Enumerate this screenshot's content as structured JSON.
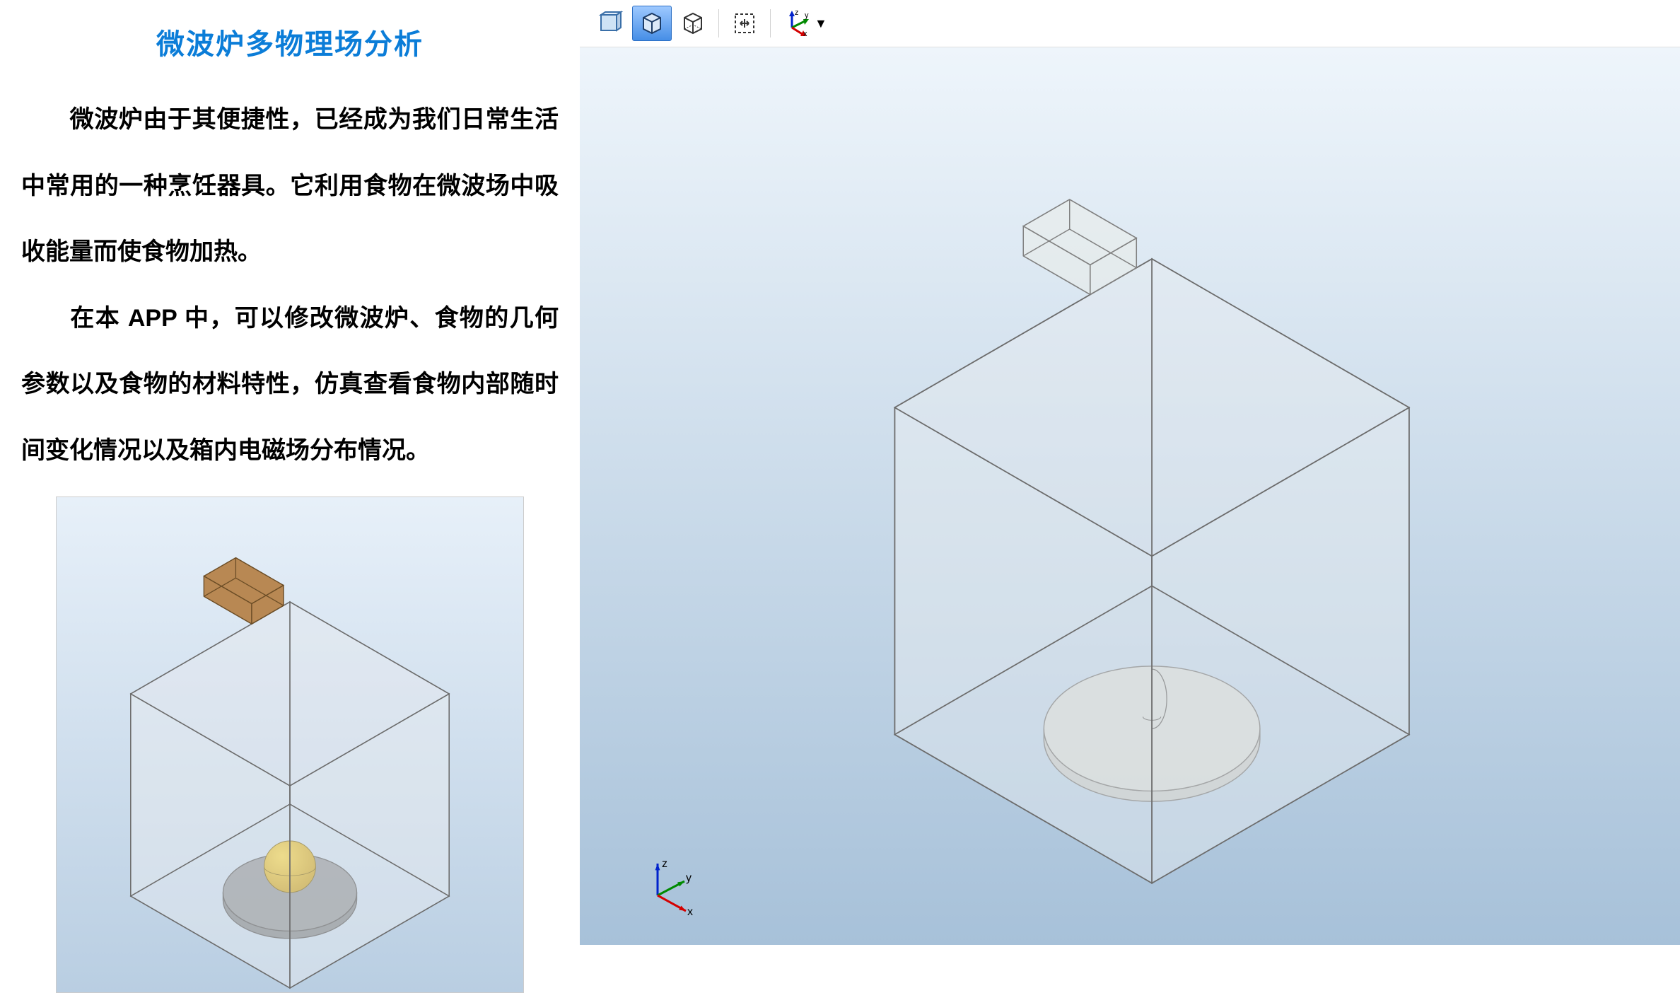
{
  "title": "微波炉多物理场分析",
  "description": {
    "p1": "微波炉由于其便捷性，已经成为我们日常生活中常用的一种烹饪器具。它利用食物在微波场中吸收能量而使食物加热。",
    "p2": "在本 APP 中，可以修改微波炉、食物的几何参数以及食物的材料特性，仿真查看食物内部随时间变化情况以及箱内电磁场分布情况。"
  },
  "toolbar": {
    "buttons": [
      {
        "name": "view-front",
        "active": false
      },
      {
        "name": "view-shaded-box",
        "active": true
      },
      {
        "name": "view-wireframe",
        "active": false
      },
      {
        "name": "zoom-extents",
        "active": false
      }
    ],
    "axis_dropdown": {
      "name": "axis-orientation"
    }
  },
  "viewport": {
    "background_top": "#eef5fb",
    "background_bottom": "#a7c1d9",
    "box_edge_color": "#6d6d6d",
    "box_face_color": "#e8edf2",
    "box_face_opacity": 0.35,
    "plate_color": "#d5d7d5",
    "plate_edge": "#808080",
    "waveguide_edge": "#808080",
    "waveguide_face": "#eceee8",
    "triad": {
      "x_color": "#d40000",
      "y_color": "#008a00",
      "z_color": "#0022cc",
      "labels": {
        "x": "x",
        "y": "y",
        "z": "z"
      }
    }
  },
  "thumbnail": {
    "background_top": "#e7f0f9",
    "background_bottom": "#b9cee2",
    "box_edge_color": "#6d6d6d",
    "box_face_color": "#e5eaf0",
    "box_face_opacity": 0.4,
    "plate_color": "#7e7e7e",
    "plate_opacity": 0.75,
    "food_color_light": "#f2d24a",
    "food_color_dark": "#c9a227",
    "waveguide_color": "#b5834a"
  }
}
